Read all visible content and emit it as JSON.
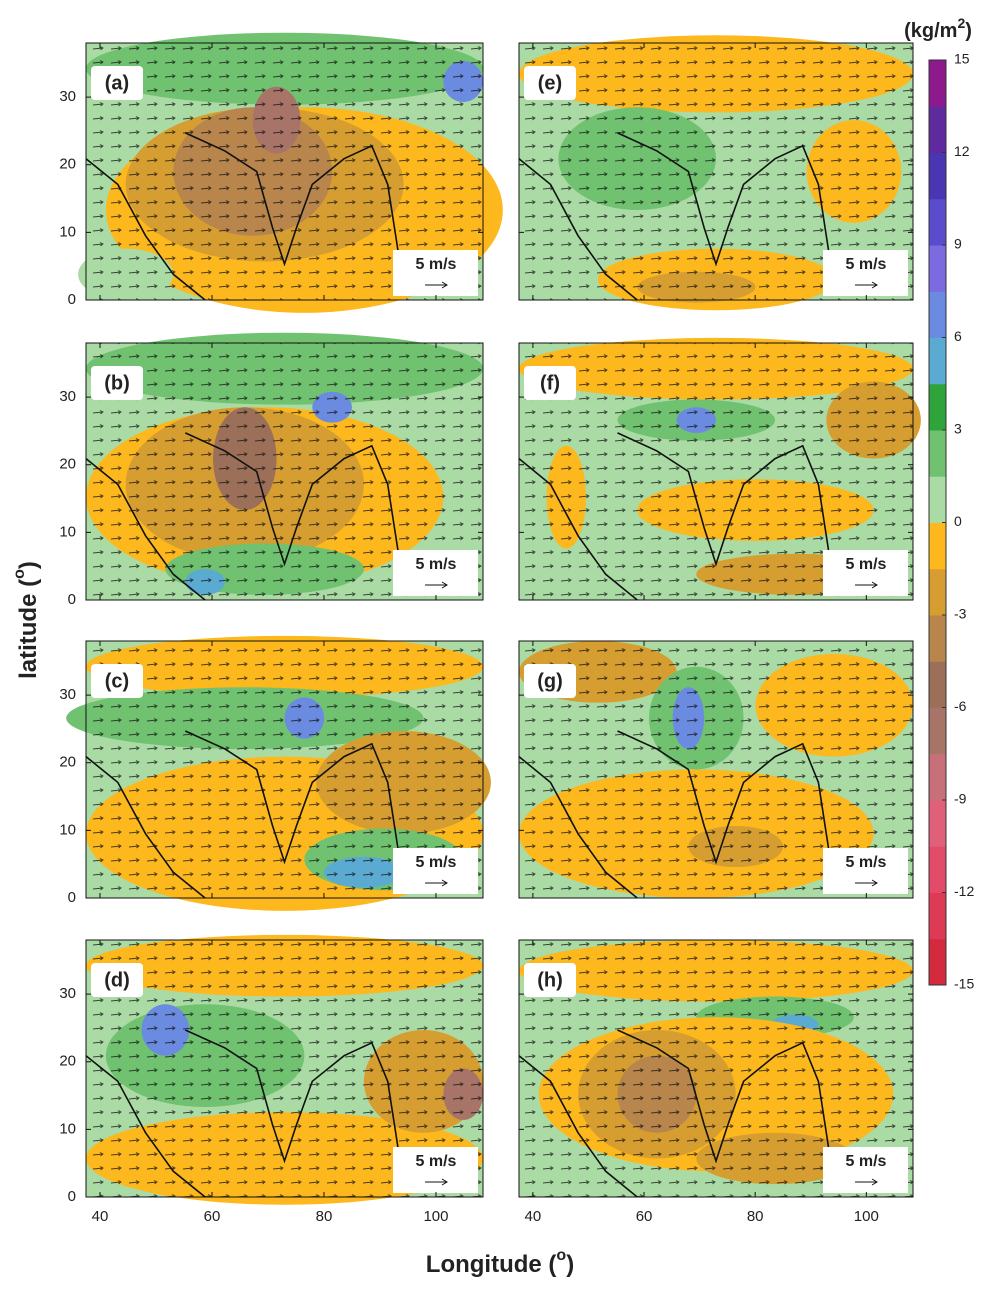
{
  "axes": {
    "xlim": [
      37.5,
      108.4
    ],
    "ylim": [
      0,
      38
    ],
    "xticks": [
      40,
      60,
      80,
      100
    ],
    "yticks": [
      0,
      10,
      20,
      30
    ]
  },
  "x_label": [
    "Longitude (",
    "o",
    ")"
  ],
  "y_label": [
    "latitude (",
    "o",
    ")"
  ],
  "panels": [
    {
      "label": "(a)",
      "scale_label": "5 m/s"
    },
    {
      "label": "(b)",
      "scale_label": "5 m/s"
    },
    {
      "label": "(c)",
      "scale_label": "5 m/s"
    },
    {
      "label": "(d)",
      "scale_label": "5 m/s"
    },
    {
      "label": "(e)",
      "scale_label": "5 m/s"
    },
    {
      "label": "(f)",
      "scale_label": "5 m/s"
    },
    {
      "label": "(g)",
      "scale_label": "5 m/s"
    },
    {
      "label": "(h)",
      "scale_label": "5 m/s"
    }
  ],
  "colorbar": {
    "unit": [
      "(kg/m",
      "2",
      ")"
    ],
    "lim": [
      -15,
      15
    ],
    "ticks": [
      -15,
      -12,
      -9,
      -6,
      -3,
      0,
      3,
      6,
      9,
      12,
      15
    ],
    "colors": [
      "#d42a3e",
      "#dc3a55",
      "#e24c68",
      "#e0607a",
      "#c8707a",
      "#a87468",
      "#9c7058",
      "#b8854c",
      "#d69e30",
      "#fdb81e",
      "#aadba5",
      "#70c270",
      "#2ea43a",
      "#5aaad2",
      "#6b8be0",
      "#7c6ae0",
      "#5a4ccc",
      "#4a36b0",
      "#5f2a9e",
      "#8c1a8c"
    ]
  }
}
